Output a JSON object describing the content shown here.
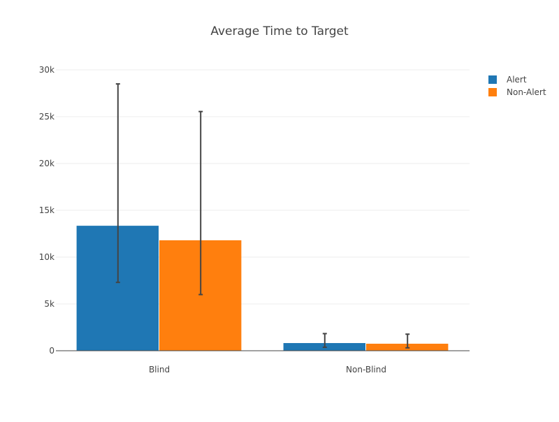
{
  "chart_data": {
    "type": "bar",
    "title": "Average Time to Target",
    "xlabel": "",
    "ylabel": "",
    "categories": [
      "Blind",
      "Non-Blind"
    ],
    "ylim": [
      0,
      30000
    ],
    "yticks": [
      0,
      5000,
      10000,
      15000,
      20000,
      25000,
      30000
    ],
    "ytick_labels": [
      "0",
      "5k",
      "10k",
      "15k",
      "20k",
      "25k",
      "30k"
    ],
    "grid": true,
    "legend_position": "top-right",
    "series": [
      {
        "name": "Alert",
        "color": "#1f77b4",
        "values": [
          13350,
          820
        ],
        "error_low": [
          7300,
          370
        ],
        "error_high": [
          28500,
          1830
        ]
      },
      {
        "name": "Non-Alert",
        "color": "#ff7f0e",
        "values": [
          11800,
          750
        ],
        "error_low": [
          6000,
          310
        ],
        "error_high": [
          25550,
          1770
        ]
      }
    ]
  }
}
